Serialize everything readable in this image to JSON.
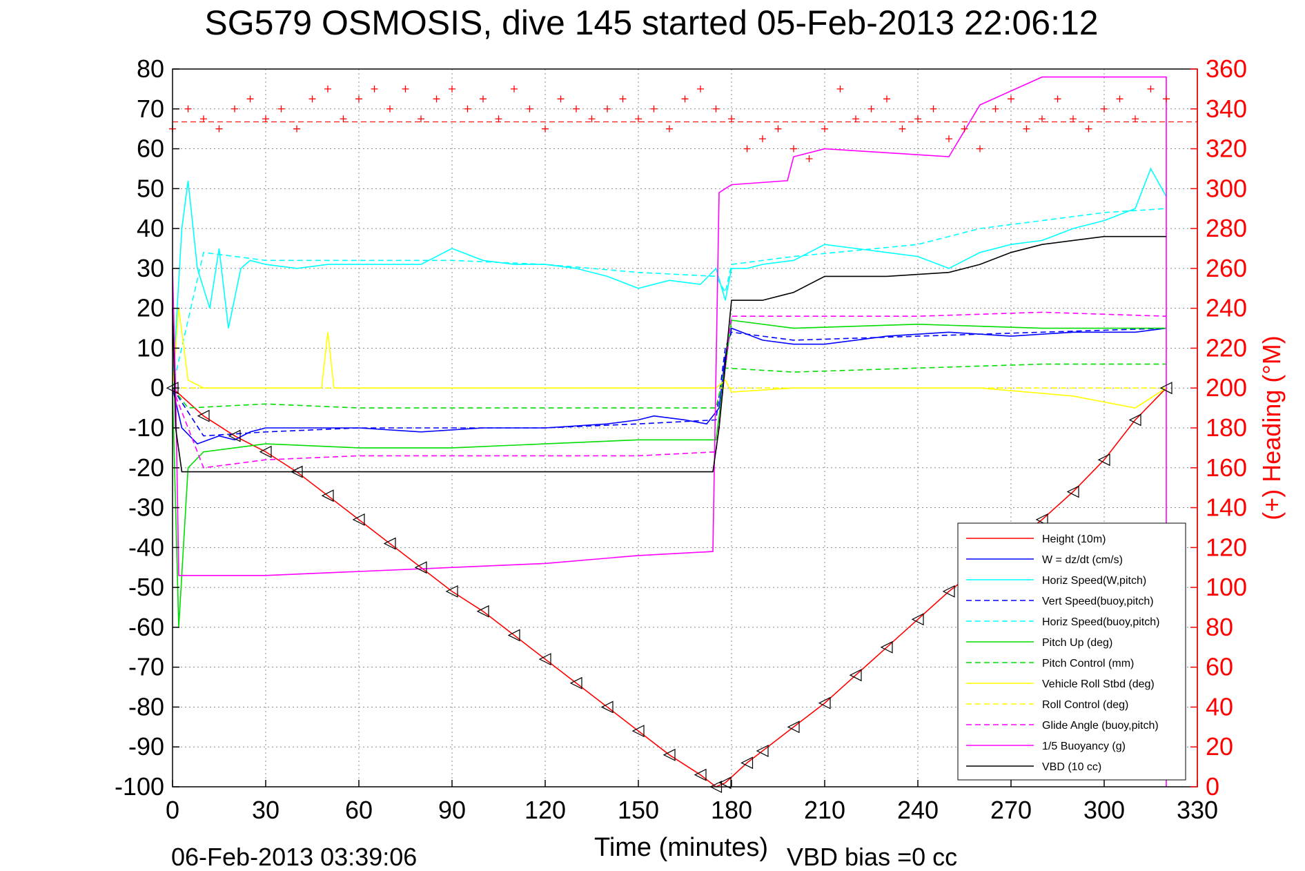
{
  "chart_data": {
    "type": "line",
    "title": "SG579 OSMOSIS, dive 145 started 05-Feb-2013 22:06:12",
    "xlabel": "Time (minutes)",
    "ylabel": "",
    "ylabel_right": "(+) Heading (°M)",
    "footer_left": "06-Feb-2013 03:39:06",
    "footer_right": "VBD bias =0 cc",
    "xlim": [
      0,
      330
    ],
    "ylim": [
      -100,
      80
    ],
    "ylim_right": [
      0,
      360
    ],
    "xticks": [
      "0",
      "30",
      "60",
      "90",
      "120",
      "150",
      "180",
      "210",
      "240",
      "270",
      "300",
      "330"
    ],
    "yticks": [
      "80",
      "70",
      "60",
      "50",
      "40",
      "30",
      "20",
      "10",
      "0",
      "-10",
      "-20",
      "-30",
      "-40",
      "-50",
      "-60",
      "-70",
      "-80",
      "-90",
      "-100"
    ],
    "yticks_right": [
      "360",
      "340",
      "320",
      "300",
      "280",
      "260",
      "240",
      "220",
      "200",
      "180",
      "160",
      "140",
      "120",
      "100",
      "80",
      "60",
      "40",
      "20",
      "0"
    ],
    "grid": true,
    "legend_position": "bottom-right",
    "series": [
      {
        "name": "Height (10m)",
        "color": "#ff0000",
        "dash": "solid",
        "x": [
          0,
          10,
          20,
          30,
          40,
          50,
          60,
          70,
          80,
          90,
          100,
          110,
          120,
          130,
          140,
          150,
          160,
          170,
          175,
          178,
          185,
          190,
          200,
          210,
          220,
          230,
          240,
          250,
          260,
          270,
          280,
          290,
          300,
          310,
          320
        ],
        "y": [
          0,
          -7,
          -12,
          -16,
          -21,
          -27,
          -33,
          -39,
          -45,
          -51,
          -56,
          -62,
          -68,
          -74,
          -80,
          -86,
          -92,
          -97,
          -100,
          -99,
          -94,
          -91,
          -85,
          -79,
          -72,
          -65,
          -58,
          -51,
          -45,
          -39,
          -33,
          -26,
          -18,
          -8,
          0
        ]
      },
      {
        "name": "W = dz/dt (cm/s)",
        "color": "#0000ff",
        "dash": "solid",
        "x": [
          0,
          3,
          8,
          15,
          20,
          25,
          30,
          40,
          50,
          60,
          80,
          100,
          120,
          140,
          150,
          155,
          165,
          172,
          176,
          178,
          180,
          190,
          200,
          210,
          230,
          250,
          270,
          290,
          310,
          320
        ],
        "y": [
          0,
          -10,
          -14,
          -12,
          -13,
          -11,
          -10,
          -10,
          -10,
          -10,
          -11,
          -10,
          -10,
          -9,
          -8,
          -7,
          -8,
          -9,
          -5,
          8,
          15,
          12,
          11,
          11,
          13,
          14,
          13,
          14,
          14,
          15
        ]
      },
      {
        "name": "Horiz Speed(W,pitch)",
        "color": "#00ffff",
        "dash": "solid",
        "x": [
          0,
          3,
          5,
          8,
          12,
          15,
          18,
          22,
          25,
          30,
          40,
          50,
          60,
          70,
          80,
          90,
          100,
          110,
          120,
          130,
          140,
          150,
          160,
          170,
          175,
          178,
          180,
          185,
          190,
          200,
          210,
          220,
          230,
          240,
          250,
          260,
          270,
          280,
          290,
          300,
          310,
          315,
          320
        ],
        "y": [
          0,
          40,
          52,
          30,
          20,
          35,
          15,
          30,
          32,
          31,
          30,
          31,
          31,
          31,
          31,
          35,
          32,
          31,
          31,
          30,
          28,
          25,
          27,
          26,
          30,
          22,
          30,
          30,
          31,
          32,
          36,
          35,
          34,
          33,
          30,
          34,
          36,
          37,
          40,
          42,
          45,
          55,
          48
        ]
      },
      {
        "name": "Vert Speed(buoy,pitch)",
        "color": "#0000ff",
        "dash": "dashed",
        "x": [
          0,
          10,
          30,
          60,
          90,
          120,
          150,
          175,
          178,
          180,
          200,
          240,
          280,
          320
        ],
        "y": [
          0,
          -12,
          -11,
          -10,
          -10,
          -10,
          -9,
          -8,
          10,
          14,
          12,
          13,
          14,
          15
        ]
      },
      {
        "name": "Horiz Speed(buoy,pitch)",
        "color": "#00ffff",
        "dash": "dashed",
        "x": [
          0,
          10,
          30,
          60,
          90,
          120,
          150,
          175,
          178,
          180,
          200,
          240,
          260,
          280,
          300,
          320
        ],
        "y": [
          0,
          34,
          32,
          32,
          32,
          31,
          29,
          28,
          24,
          31,
          33,
          36,
          40,
          42,
          44,
          45
        ]
      },
      {
        "name": "Pitch Up (deg)",
        "color": "#00dd00",
        "dash": "solid",
        "x": [
          0,
          2,
          5,
          10,
          20,
          30,
          60,
          90,
          120,
          150,
          175,
          178,
          180,
          200,
          240,
          280,
          320
        ],
        "y": [
          0,
          -60,
          -20,
          -16,
          -15,
          -14,
          -15,
          -15,
          -14,
          -13,
          -13,
          5,
          17,
          15,
          16,
          15,
          15
        ]
      },
      {
        "name": "Pitch Control (mm)",
        "color": "#00dd00",
        "dash": "dashed",
        "x": [
          0,
          5,
          30,
          60,
          120,
          175,
          178,
          200,
          240,
          280,
          320
        ],
        "y": [
          0,
          -5,
          -4,
          -5,
          -5,
          -5,
          5,
          4,
          5,
          6,
          6
        ]
      },
      {
        "name": "Vehicle Roll Stbd (deg)",
        "color": "#ffff00",
        "dash": "solid",
        "x": [
          0,
          2,
          5,
          10,
          20,
          30,
          48,
          50,
          52,
          60,
          100,
          120,
          150,
          175,
          178,
          180,
          200,
          230,
          260,
          290,
          310,
          320
        ],
        "y": [
          0,
          20,
          2,
          0,
          0,
          0,
          0,
          14,
          0,
          0,
          0,
          0,
          0,
          0,
          2,
          -1,
          0,
          0,
          0,
          -2,
          -5,
          0
        ]
      },
      {
        "name": "Roll Control (deg)",
        "color": "#ffff00",
        "dash": "dashed",
        "x": [
          0,
          30,
          180,
          320
        ],
        "y": [
          0,
          0,
          0,
          0
        ]
      },
      {
        "name": "Glide Angle (buoy,pitch)",
        "color": "#ff00ff",
        "dash": "dashed",
        "x": [
          0,
          10,
          30,
          60,
          90,
          120,
          150,
          175,
          178,
          180,
          200,
          240,
          280,
          320
        ],
        "y": [
          0,
          -20,
          -18,
          -17,
          -17,
          -17,
          -17,
          -16,
          5,
          18,
          18,
          18,
          19,
          18
        ]
      },
      {
        "name": "1/5 Buoyancy (g)",
        "color": "#ff00ff",
        "dash": "solid",
        "x": [
          0,
          1,
          2,
          30,
          60,
          90,
          120,
          150,
          174,
          176,
          180,
          198,
          200,
          210,
          230,
          250,
          260,
          280,
          300,
          320,
          320
        ],
        "y": [
          30,
          0,
          -47,
          -47,
          -46,
          -45,
          -44,
          -42,
          -41,
          49,
          51,
          52,
          58,
          60,
          59,
          58,
          71,
          78,
          78,
          78,
          -100
        ]
      },
      {
        "name": "VBD (10 cc)",
        "color": "#000000",
        "dash": "solid",
        "x": [
          0,
          1,
          3,
          170,
          174,
          176,
          180,
          190,
          200,
          210,
          230,
          250,
          260,
          270,
          280,
          290,
          300,
          310,
          320
        ],
        "y": [
          20,
          -10,
          -21,
          -21,
          -21,
          -10,
          22,
          22,
          24,
          28,
          28,
          29,
          31,
          34,
          36,
          37,
          38,
          38,
          38
        ]
      }
    ],
    "heading": {
      "name": "(+) Heading (°M)",
      "color": "#ff0000",
      "axis": "right",
      "x": [
        0,
        5,
        10,
        15,
        20,
        25,
        30,
        35,
        40,
        45,
        50,
        55,
        60,
        65,
        70,
        75,
        80,
        85,
        90,
        95,
        100,
        105,
        110,
        115,
        120,
        125,
        130,
        135,
        140,
        145,
        150,
        155,
        160,
        165,
        170,
        175,
        180,
        185,
        190,
        195,
        200,
        205,
        210,
        215,
        220,
        225,
        230,
        235,
        240,
        245,
        250,
        255,
        260,
        265,
        270,
        275,
        280,
        285,
        290,
        295,
        300,
        305,
        310,
        315,
        320
      ],
      "y": [
        330,
        340,
        335,
        330,
        340,
        345,
        335,
        340,
        330,
        345,
        350,
        335,
        345,
        350,
        340,
        350,
        335,
        345,
        350,
        340,
        345,
        335,
        350,
        340,
        330,
        345,
        340,
        335,
        340,
        345,
        335,
        340,
        330,
        345,
        350,
        340,
        335,
        320,
        325,
        330,
        320,
        315,
        330,
        350,
        335,
        340,
        345,
        330,
        335,
        340,
        325,
        330,
        320,
        340,
        345,
        330,
        335,
        345,
        335,
        330,
        340,
        345,
        335,
        350,
        345
      ],
      "ref": 333.5
    }
  }
}
